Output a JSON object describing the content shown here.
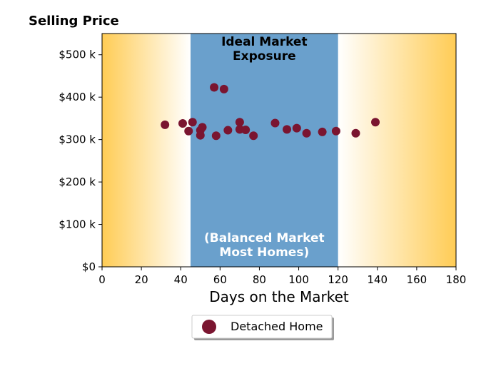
{
  "chart_data": {
    "type": "scatter",
    "title": "Selling Price",
    "xlabel": "Days on the Market",
    "ylabel": "",
    "xlim": [
      0,
      180
    ],
    "ylim": [
      0,
      550000
    ],
    "x_ticks": [
      0,
      20,
      40,
      60,
      80,
      100,
      120,
      140,
      160,
      180
    ],
    "x_tick_labels": [
      "0",
      "20",
      "40",
      "60",
      "80",
      "100",
      "120",
      "140",
      "160",
      "180"
    ],
    "y_ticks": [
      0,
      100000,
      200000,
      300000,
      400000,
      500000
    ],
    "y_tick_labels": [
      "$0",
      "$100 k",
      "$200 k",
      "$300 k",
      "$400 k",
      "$500 k"
    ],
    "grid": false,
    "band": {
      "x_start": 45,
      "x_end": 120,
      "color": "#6aa0cc",
      "label_top": [
        "Ideal Market",
        "Exposure"
      ],
      "label_bottom": [
        "(Balanced Market",
        "Most Homes)"
      ]
    },
    "background_gradient_color": "#ffcc55",
    "legend": {
      "position": "bottom-center",
      "entries": [
        "Detached Home"
      ]
    },
    "series": [
      {
        "name": "Detached Home",
        "color": "#7a1530",
        "points": [
          {
            "x": 32,
            "y": 335000
          },
          {
            "x": 41,
            "y": 338000
          },
          {
            "x": 44,
            "y": 320000
          },
          {
            "x": 46,
            "y": 341000
          },
          {
            "x": 50,
            "y": 310000
          },
          {
            "x": 50,
            "y": 322000
          },
          {
            "x": 51,
            "y": 329000
          },
          {
            "x": 57,
            "y": 423000
          },
          {
            "x": 58,
            "y": 309000
          },
          {
            "x": 62,
            "y": 419000
          },
          {
            "x": 64,
            "y": 322000
          },
          {
            "x": 70,
            "y": 324000
          },
          {
            "x": 70,
            "y": 341000
          },
          {
            "x": 73,
            "y": 323000
          },
          {
            "x": 77,
            "y": 309000
          },
          {
            "x": 88,
            "y": 339000
          },
          {
            "x": 94,
            "y": 324000
          },
          {
            "x": 99,
            "y": 327000
          },
          {
            "x": 104,
            "y": 315000
          },
          {
            "x": 112,
            "y": 318000
          },
          {
            "x": 119,
            "y": 320000
          },
          {
            "x": 129,
            "y": 315000
          },
          {
            "x": 139,
            "y": 341000
          }
        ]
      }
    ]
  }
}
